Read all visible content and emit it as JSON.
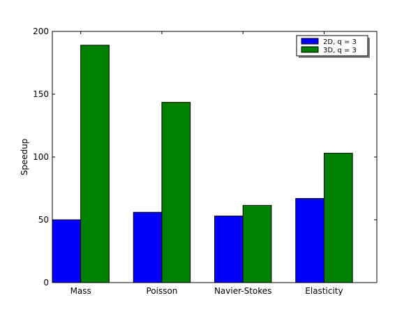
{
  "chart_data": {
    "type": "bar",
    "title": "",
    "xlabel": "",
    "ylabel": "Speedup",
    "categories": [
      "Mass",
      "Poisson",
      "Navier-Stokes",
      "Elasticity"
    ],
    "series": [
      {
        "name": "2D, q = 3",
        "color": "#0000ff",
        "values": [
          50,
          56,
          53,
          67
        ]
      },
      {
        "name": "3D, q = 3",
        "color": "#008000",
        "values": [
          189,
          143.5,
          61.5,
          103
        ]
      }
    ],
    "ylim": [
      0,
      200
    ],
    "yticks": [
      0,
      50,
      100,
      150,
      200
    ],
    "grid": false,
    "legend_position": "top-right"
  }
}
